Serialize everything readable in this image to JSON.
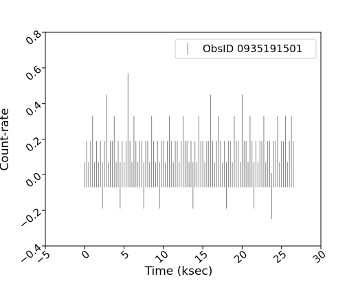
{
  "chart_data": {
    "type": "errorbar",
    "xlabel": "Time (ksec)",
    "ylabel": "Count-rate",
    "xlim": [
      -5,
      30
    ],
    "ylim": [
      -0.4,
      0.8
    ],
    "xticks": [
      {
        "value": -5,
        "label": "−5"
      },
      0,
      5,
      10,
      15,
      20,
      25,
      30
    ],
    "yticks": [
      {
        "value": -0.4,
        "label": "−0.4"
      },
      {
        "value": -0.2,
        "label": "−0.2"
      },
      {
        "value": 0,
        "label": "0.0"
      },
      0.2,
      0.4,
      0.6,
      0.8
    ],
    "legend": "upper right",
    "series": [
      {
        "name": "ObsID 0935191501",
        "color": "#808080",
        "x": [
          0,
          0.25,
          0.5,
          0.75,
          1,
          1.25,
          1.5,
          1.75,
          2,
          2.25,
          2.5,
          2.75,
          3,
          3.25,
          3.5,
          3.75,
          4,
          4.25,
          4.5,
          4.75,
          5,
          5.25,
          5.5,
          5.75,
          6,
          6.25,
          6.5,
          6.75,
          7,
          7.25,
          7.5,
          7.75,
          8,
          8.25,
          8.5,
          8.75,
          9,
          9.25,
          9.5,
          9.75,
          10,
          10.25,
          10.5,
          10.75,
          11,
          11.25,
          11.5,
          11.75,
          12,
          12.25,
          12.5,
          12.75,
          13,
          13.25,
          13.5,
          13.75,
          14,
          14.25,
          14.5,
          14.75,
          15,
          15.25,
          15.5,
          15.75,
          16,
          16.25,
          16.5,
          16.75,
          17,
          17.25,
          17.5,
          17.75,
          18,
          18.25,
          18.5,
          18.75,
          19,
          19.25,
          19.5,
          19.75,
          20,
          20.25,
          20.5,
          20.75,
          21,
          21.25,
          21.5,
          21.75,
          22,
          22.25,
          22.5,
          22.75,
          23,
          23.25,
          23.5,
          23.75,
          24,
          24.25,
          24.5,
          24.75,
          25,
          25.25,
          25.5,
          25.75,
          26,
          26.25,
          26.5
        ],
        "values": [
          0,
          0.06,
          0,
          0.06,
          0.13,
          0,
          0.06,
          0,
          0.06,
          -0.06,
          0.06,
          0.19,
          0,
          0.06,
          0.06,
          0.13,
          0,
          0.06,
          -0.06,
          0.06,
          0,
          0.06,
          0.25,
          0.06,
          0,
          0.13,
          0.06,
          0,
          0.06,
          0.06,
          -0.06,
          0.06,
          0.06,
          0,
          0.13,
          0.06,
          0,
          0.06,
          -0.06,
          0.06,
          0.06,
          0,
          0.06,
          0.13,
          0.06,
          0,
          0.06,
          0.06,
          0,
          0.06,
          0.13,
          0.06,
          0.06,
          0,
          0.06,
          -0.06,
          0.06,
          0,
          0.13,
          0.06,
          0.06,
          0,
          0.06,
          0.06,
          0.19,
          0.06,
          0,
          0.06,
          0.13,
          0.06,
          0,
          0.06,
          -0.06,
          0.06,
          0.06,
          0,
          0.13,
          0.06,
          0.06,
          0,
          0.19,
          0.06,
          0.06,
          0,
          0.13,
          0.06,
          -0.06,
          0.06,
          0,
          0.06,
          0.06,
          0.13,
          0,
          0.06,
          0.06,
          -0.12,
          0.06,
          0.06,
          0.13,
          0,
          0.06,
          0.06,
          0.13,
          0,
          0.06,
          0.13,
          0.06
        ],
        "errors": [
          0.07,
          0.13,
          0.07,
          0.13,
          0.2,
          0.07,
          0.13,
          0.07,
          0.13,
          0.13,
          0.13,
          0.26,
          0.07,
          0.13,
          0.13,
          0.2,
          0.07,
          0.13,
          0.13,
          0.13,
          0.07,
          0.13,
          0.32,
          0.13,
          0.07,
          0.2,
          0.13,
          0.07,
          0.13,
          0.13,
          0.13,
          0.13,
          0.13,
          0.07,
          0.2,
          0.13,
          0.07,
          0.13,
          0.13,
          0.13,
          0.13,
          0.07,
          0.13,
          0.2,
          0.13,
          0.07,
          0.13,
          0.13,
          0.07,
          0.13,
          0.2,
          0.13,
          0.13,
          0.07,
          0.13,
          0.13,
          0.13,
          0.07,
          0.2,
          0.13,
          0.13,
          0.07,
          0.13,
          0.13,
          0.26,
          0.13,
          0.07,
          0.13,
          0.2,
          0.13,
          0.07,
          0.13,
          0.13,
          0.13,
          0.13,
          0.07,
          0.2,
          0.13,
          0.13,
          0.07,
          0.26,
          0.13,
          0.13,
          0.07,
          0.2,
          0.13,
          0.13,
          0.13,
          0.07,
          0.13,
          0.13,
          0.2,
          0.07,
          0.13,
          0.13,
          0.13,
          0.13,
          0.13,
          0.2,
          0.07,
          0.13,
          0.13,
          0.2,
          0.07,
          0.13,
          0.2,
          0.13
        ]
      }
    ]
  }
}
